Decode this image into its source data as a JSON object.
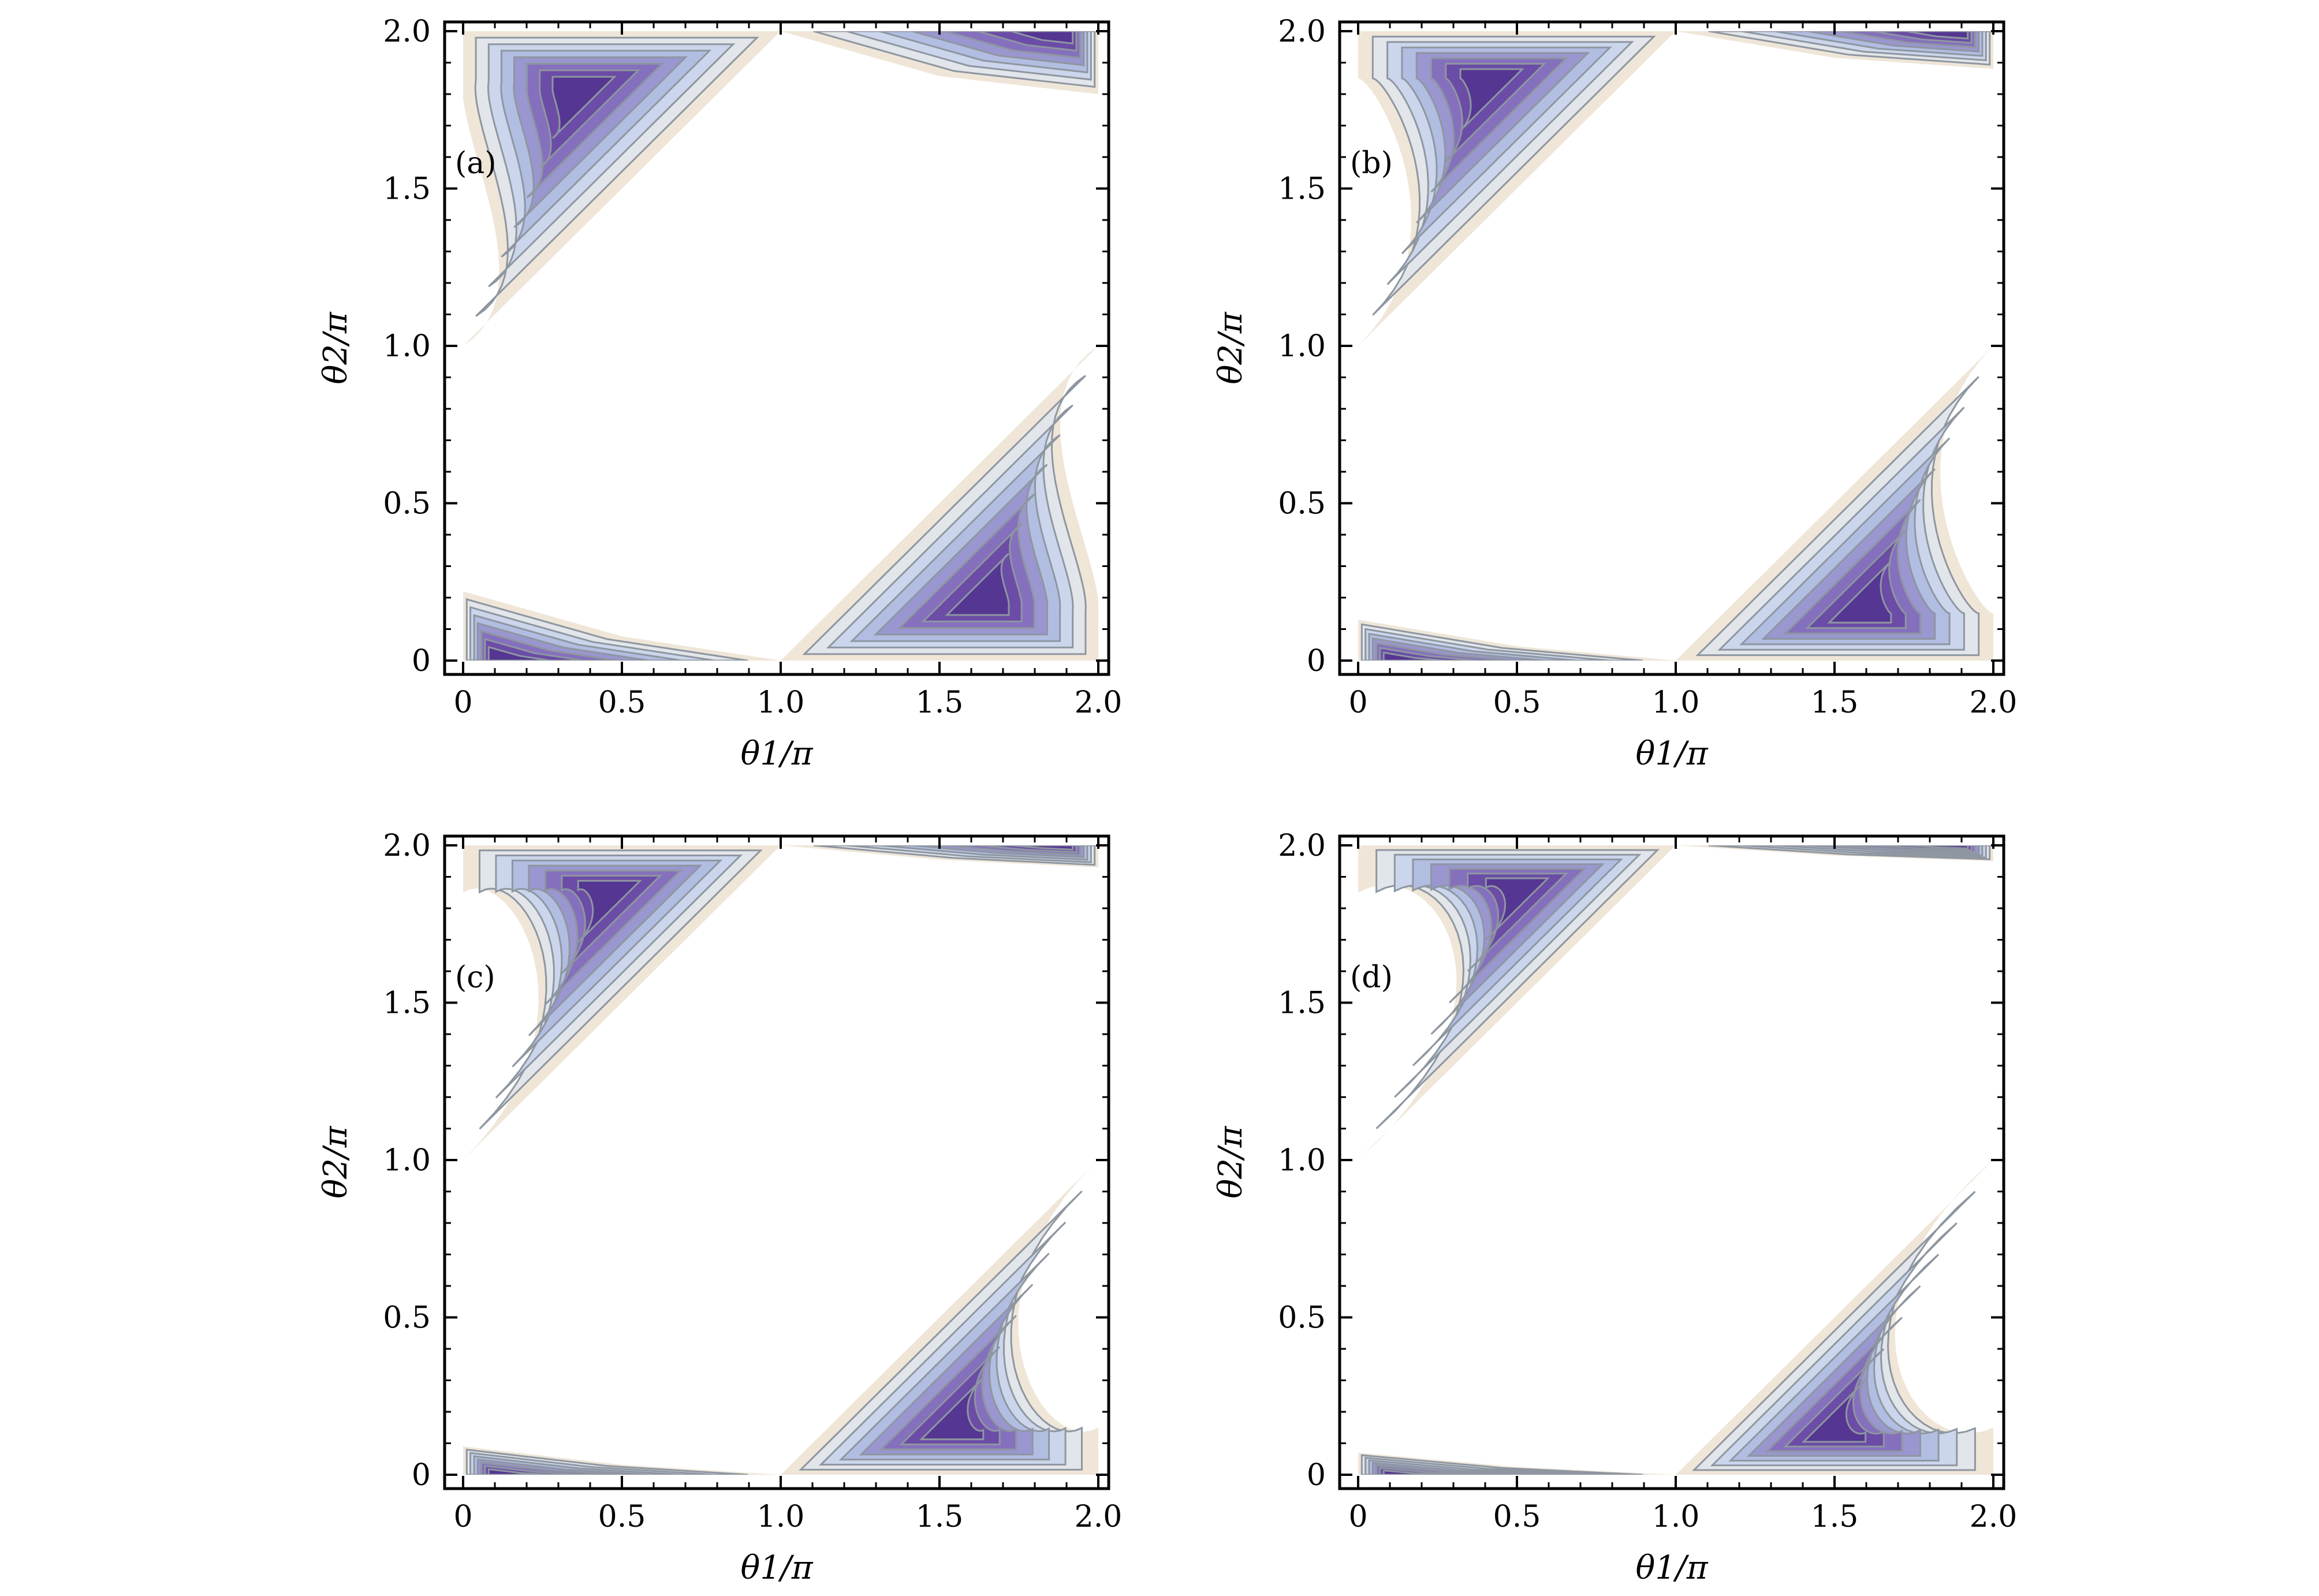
{
  "colors": {
    "band": [
      "#efe6d8",
      "#e2e6ea",
      "#cbd6ec",
      "#b2bde2",
      "#9a96cf",
      "#8570bd",
      "#6b4ca6",
      "#553692"
    ],
    "contour": "#8e96a0",
    "frame": "#000000",
    "background": "#ffffff"
  },
  "chart_data": [
    {
      "type": "contour",
      "panel_label": "(a)",
      "xlabel": "θ1/π",
      "ylabel": "θ2/π",
      "xlim": [
        0,
        2
      ],
      "ylim": [
        0,
        2
      ],
      "x_ticks": [
        "0",
        "0.5",
        "1.0",
        "1.5",
        "2.0"
      ],
      "y_ticks": [
        "0",
        "0.5",
        "1.0",
        "1.5",
        "2.0"
      ],
      "regions": {
        "upper_left": {
          "diagonal_start": [
            0,
            1.0
          ],
          "diagonal_end": [
            1.0,
            2.0
          ],
          "inner_tip_x": 0.02,
          "waist_y": 1.42,
          "core": [
            0.35,
            1.82
          ]
        },
        "upper_strip": {
          "y_at_x2": 1.8,
          "min_y": 1.78
        },
        "lower_right": {
          "diagonal_start": [
            1.0,
            0.0
          ],
          "diagonal_end": [
            2.0,
            1.0
          ],
          "inner_tip_x": 1.97,
          "waist_y": 0.57,
          "core": [
            1.65,
            0.18
          ]
        },
        "lower_strip": {
          "y_at_x0": 0.22,
          "max_y": 0.22
        }
      }
    },
    {
      "type": "contour",
      "panel_label": "(b)",
      "xlabel": "θ1/π",
      "ylabel": "θ2/π",
      "xlim": [
        0,
        2
      ],
      "ylim": [
        0,
        2
      ],
      "x_ticks": [
        "0",
        "0.5",
        "1.0",
        "1.5",
        "2.0"
      ],
      "y_ticks": [
        "0",
        "0.5",
        "1.0",
        "1.5",
        "2.0"
      ],
      "regions": {
        "upper_left": {
          "diagonal_start": [
            0,
            1.0
          ],
          "diagonal_end": [
            1.0,
            2.0
          ],
          "inner_tip_x": 0.1,
          "waist_y": 1.6,
          "core": [
            0.4,
            1.85
          ]
        },
        "upper_strip": {
          "y_at_x2": 1.88,
          "min_y": 1.87
        },
        "lower_right": {
          "diagonal_start": [
            1.0,
            0.0
          ],
          "diagonal_end": [
            2.0,
            1.0
          ],
          "inner_tip_x": 1.9,
          "waist_y": 0.4,
          "core": [
            1.6,
            0.15
          ]
        },
        "lower_strip": {
          "y_at_x0": 0.13,
          "max_y": 0.13
        }
      }
    },
    {
      "type": "contour",
      "panel_label": "(c)",
      "xlabel": "θ1/π",
      "ylabel": "θ2/π",
      "xlim": [
        0,
        2
      ],
      "ylim": [
        0,
        2
      ],
      "x_ticks": [
        "0",
        "0.5",
        "1.0",
        "1.5",
        "2.0"
      ],
      "y_ticks": [
        "0",
        "0.5",
        "1.0",
        "1.5",
        "2.0"
      ],
      "regions": {
        "upper_left": {
          "diagonal_start": [
            0,
            1.0
          ],
          "diagonal_end": [
            1.0,
            2.0
          ],
          "inner_tip_x": 0.2,
          "waist_y": 1.7,
          "core": [
            0.45,
            1.86
          ]
        },
        "upper_strip": {
          "y_at_x2": 1.93,
          "min_y": 1.93
        },
        "lower_right": {
          "diagonal_start": [
            1.0,
            0.0
          ],
          "diagonal_end": [
            2.0,
            1.0
          ],
          "inner_tip_x": 1.78,
          "waist_y": 0.3,
          "core": [
            1.55,
            0.14
          ]
        },
        "lower_strip": {
          "y_at_x0": 0.09,
          "max_y": 0.09
        }
      }
    },
    {
      "type": "contour",
      "panel_label": "(d)",
      "xlabel": "θ1/π",
      "ylabel": "θ2/π",
      "xlim": [
        0,
        2
      ],
      "ylim": [
        0,
        2
      ],
      "x_ticks": [
        "0",
        "0.5",
        "1.0",
        "1.5",
        "2.0"
      ],
      "y_ticks": [
        "0",
        "0.5",
        "1.0",
        "1.5",
        "2.0"
      ],
      "regions": {
        "upper_left": {
          "diagonal_start": [
            0,
            1.0
          ],
          "diagonal_end": [
            1.0,
            2.0
          ],
          "inner_tip_x": 0.3,
          "waist_y": 1.74,
          "core": [
            0.5,
            1.87
          ]
        },
        "upper_strip": {
          "y_at_x2": 1.95,
          "min_y": 1.95
        },
        "lower_right": {
          "diagonal_start": [
            1.0,
            0.0
          ],
          "diagonal_end": [
            2.0,
            1.0
          ],
          "inner_tip_x": 1.7,
          "waist_y": 0.28,
          "core": [
            1.5,
            0.13
          ]
        },
        "lower_strip": {
          "y_at_x0": 0.07,
          "max_y": 0.07
        }
      }
    }
  ]
}
